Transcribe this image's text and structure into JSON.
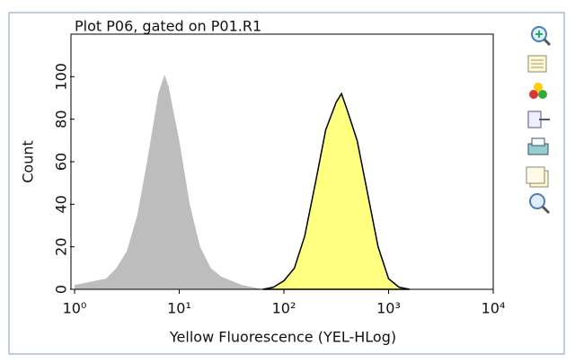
{
  "chart_data": {
    "type": "histogram-overlay",
    "title": "Plot P06, gated on P01.R1",
    "x_label": "Yellow Fluorescence (YEL-HLog)",
    "y_label": "Count",
    "log_x": true,
    "grid": false,
    "xlim": [
      1,
      10000
    ],
    "xticks": [
      {
        "value": 1,
        "label": "10⁰"
      },
      {
        "value": 10,
        "label": "10¹"
      },
      {
        "value": 100,
        "label": "10²"
      },
      {
        "value": 1000,
        "label": "10³"
      },
      {
        "value": 10000,
        "label": "10⁴"
      }
    ],
    "ylim": [
      0,
      120
    ],
    "yticks": [
      0,
      20,
      40,
      60,
      80,
      100
    ],
    "series": [
      {
        "color": "#bdbdbd",
        "edge": "none",
        "x": [
          1,
          1.26,
          1.58,
          2,
          2.51,
          3.16,
          3.98,
          5.01,
          6.31,
          7.24,
          7.94,
          10,
          12.6,
          15.8,
          20,
          25.1,
          31.6,
          39.8,
          50.1,
          63.1
        ],
        "values": [
          2,
          3,
          4,
          5,
          10,
          18,
          35,
          62,
          92,
          101,
          95,
          70,
          40,
          20,
          10,
          6,
          4,
          2,
          1,
          0
        ]
      },
      {
        "color": "#ffff80",
        "edge": "#000000",
        "x": [
          63.1,
          79.4,
          100,
          126,
          158,
          200,
          251,
          316,
          355,
          398,
          501,
          631,
          794,
          1000,
          1259,
          1585
        ],
        "values": [
          0,
          1,
          4,
          10,
          25,
          50,
          75,
          88,
          92,
          85,
          70,
          45,
          20,
          5,
          1,
          0
        ]
      }
    ]
  }
}
